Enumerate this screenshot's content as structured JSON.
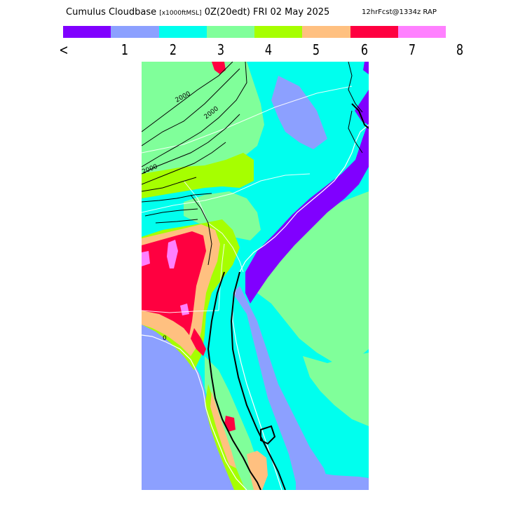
{
  "header": {
    "title": "Cumulus Cloudbase",
    "units": "[x1000ftMSL]",
    "valid": "0Z(20edt) FRI 02 May 2025",
    "forecast": "12hrFcst@1334z RAP"
  },
  "legend": {
    "colors": [
      "#8000ff",
      "#8ca0ff",
      "#00ffee",
      "#80ff9a",
      "#a6ff00",
      "#ffc080",
      "#ff0040",
      "#ff80ff"
    ],
    "labels": [
      "<",
      "1",
      "2",
      "3",
      "4",
      "5",
      "6",
      "7",
      "8"
    ]
  },
  "map": {
    "contour_labels": [
      "2000",
      "2000",
      "2000",
      "0"
    ]
  }
}
